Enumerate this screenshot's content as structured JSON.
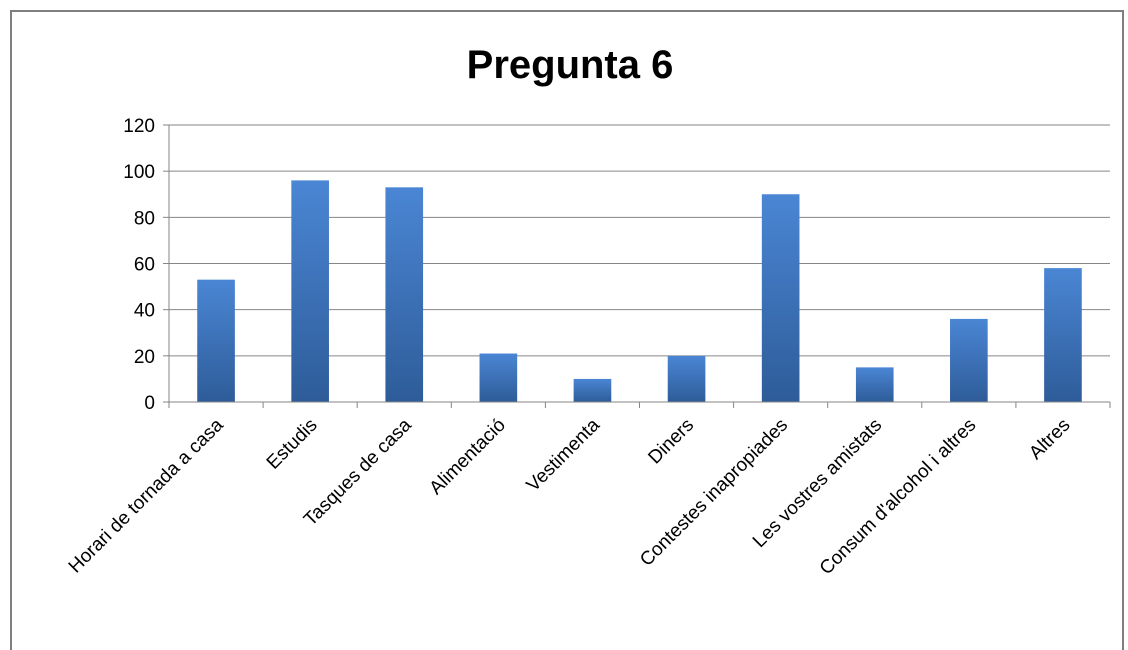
{
  "chart_data": {
    "type": "bar",
    "title": "Pregunta 6",
    "xlabel": "",
    "ylabel": "",
    "categories": [
      "Horari de tornada a casa",
      "Estudis",
      "Tasques de casa",
      "Alimentació",
      "Vestimenta",
      "Diners",
      "Contestes inapropiades",
      "Les vostres amistats",
      "Consum d'alcohol i altres",
      "Altres"
    ],
    "values": [
      53,
      96,
      93,
      21,
      10,
      20,
      90,
      15,
      36,
      58
    ],
    "ylim": [
      0,
      120
    ],
    "yticks": [
      0,
      20,
      40,
      60,
      80,
      100,
      120
    ],
    "grid": true,
    "legend": "none",
    "colors": {
      "bar_top": "#4a86d4",
      "bar_bottom": "#2e5c99",
      "grid": "#868686",
      "axis": "#868686",
      "frame": "#7f7f7f"
    }
  }
}
